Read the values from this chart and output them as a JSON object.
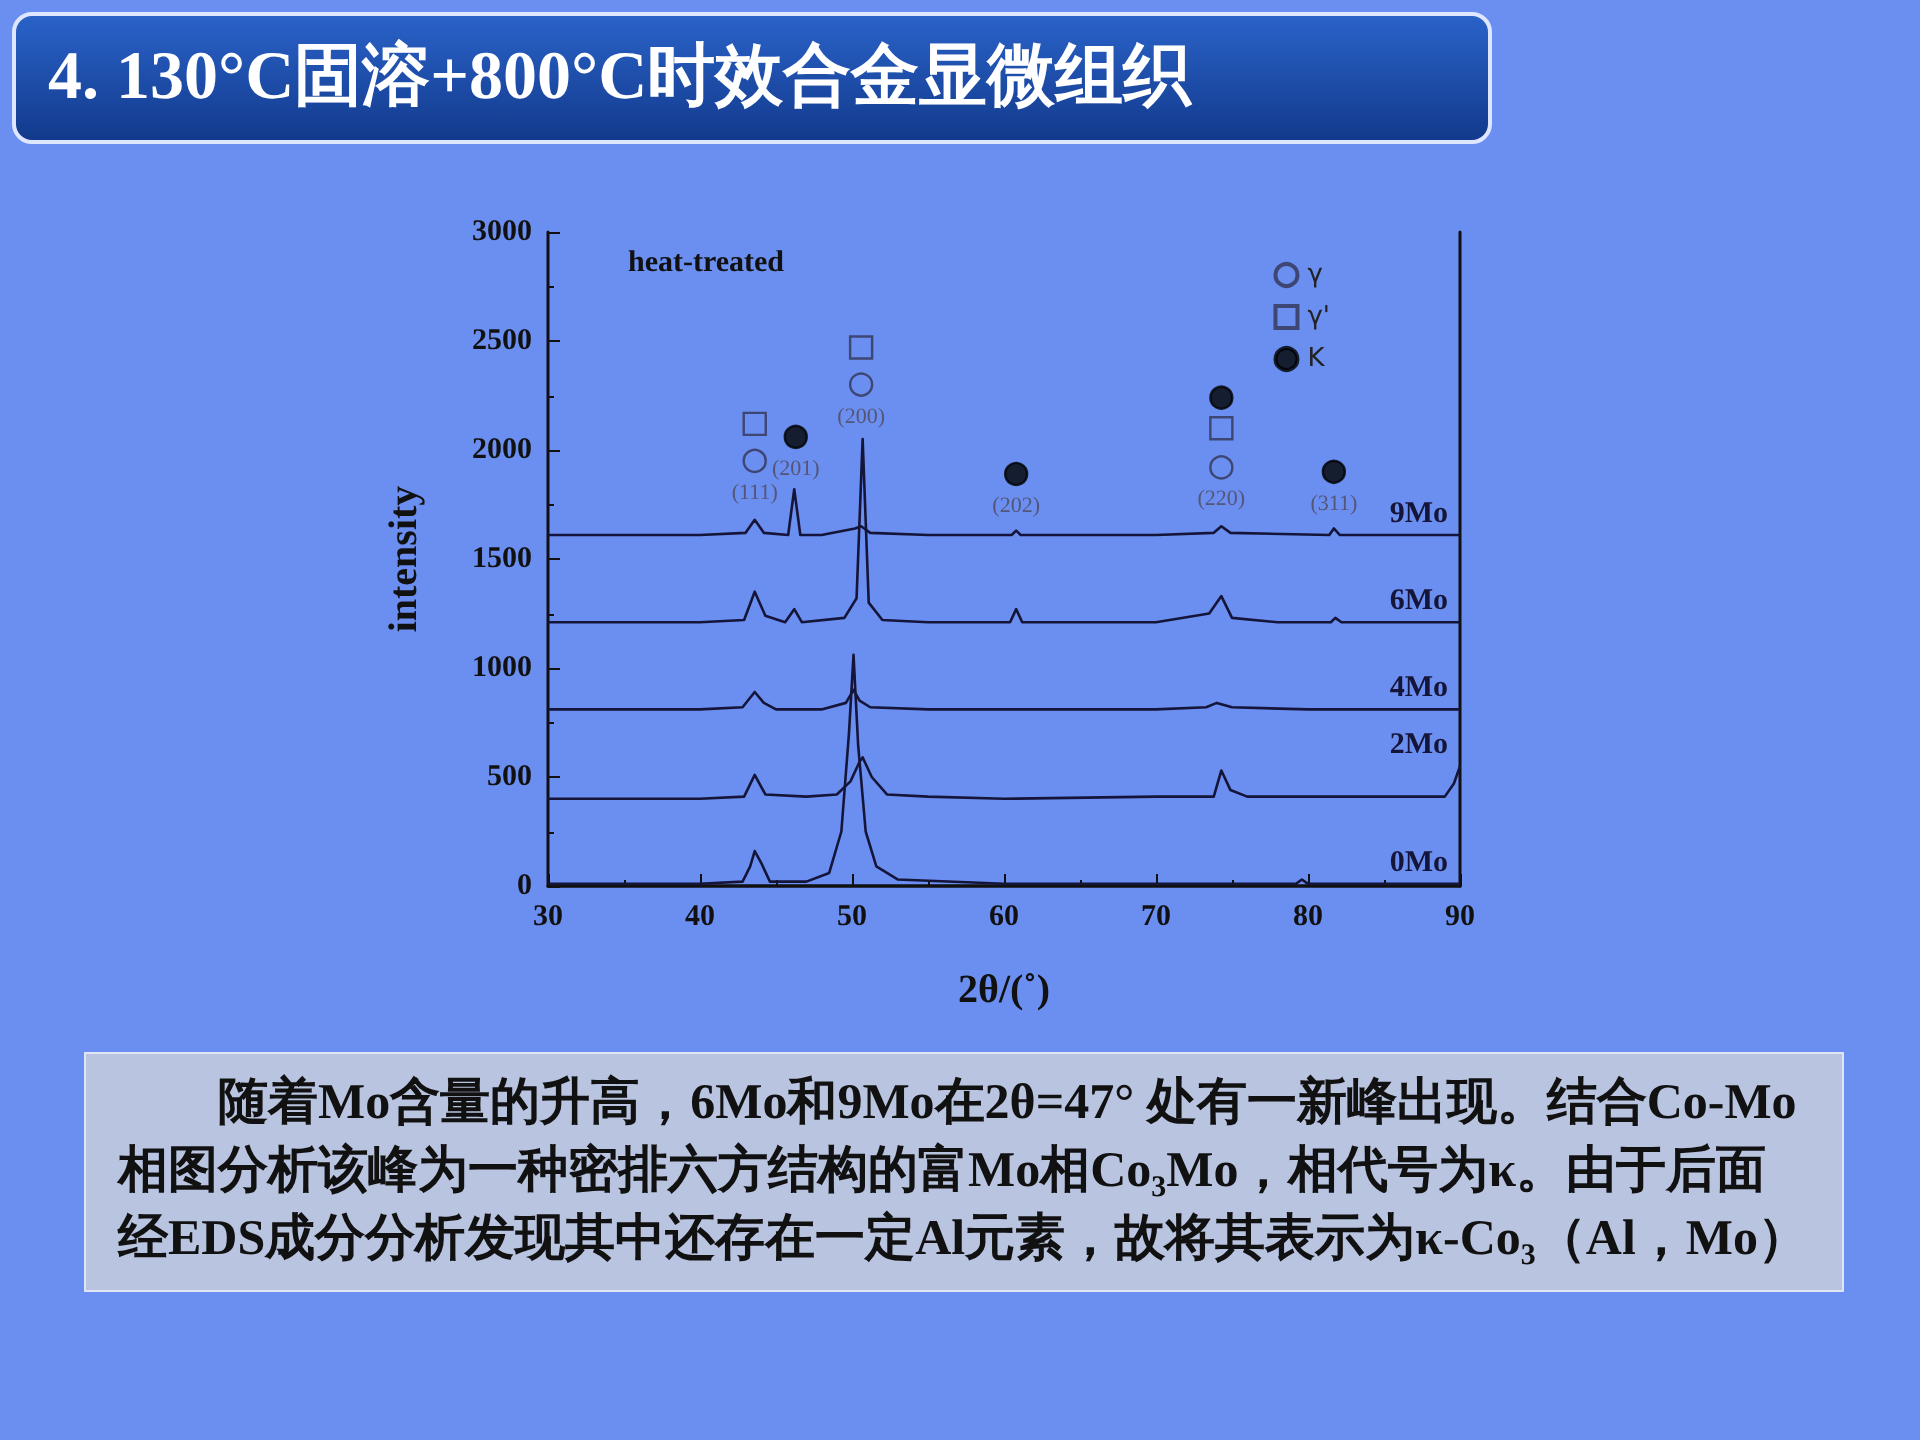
{
  "chart_data": {
    "type": "line",
    "title": "4. 130°C固溶+800°C时效合金显微组织",
    "xlabel": "2θ/(˚)",
    "ylabel": "intensity",
    "xlim": [
      30,
      90
    ],
    "xticks": [
      30,
      40,
      50,
      60,
      70,
      80,
      90
    ],
    "ylim": [
      0,
      3000
    ],
    "yticks": [
      0,
      500,
      1000,
      1500,
      2000,
      2500,
      3000
    ],
    "grid": false,
    "legend": "top right",
    "marker": "none",
    "series": [
      {
        "name": "0Mo",
        "color": "#15153a",
        "x": [
          30,
          35,
          40,
          42.8,
          43.3,
          43.6,
          44,
          44.6,
          47,
          48.5,
          49.3,
          49.8,
          50.1,
          50.4,
          50.9,
          51.6,
          53,
          60,
          70,
          79.2,
          79.6,
          80,
          90
        ],
        "values": [
          10,
          10,
          10,
          20,
          90,
          160,
          110,
          20,
          20,
          60,
          250,
          700,
          1060,
          650,
          250,
          90,
          30,
          10,
          10,
          10,
          30,
          10,
          10
        ]
      },
      {
        "name": "2Mo",
        "color": "#15153a",
        "x": [
          30,
          40,
          42.9,
          43.6,
          44.3,
          47,
          49,
          49.9,
          50.5,
          50.7,
          51.3,
          52.3,
          55,
          60,
          70,
          73.8,
          74.3,
          74.9,
          76,
          85,
          89,
          89.6,
          90
        ],
        "values": [
          400,
          400,
          410,
          510,
          420,
          410,
          420,
          480,
          570,
          590,
          500,
          420,
          410,
          400,
          410,
          410,
          530,
          440,
          410,
          410,
          410,
          470,
          550
        ]
      },
      {
        "name": "4Mo",
        "color": "#15153a",
        "x": [
          30,
          40,
          42.8,
          43.6,
          44.2,
          45,
          48,
          49.6,
          50.1,
          50.5,
          51.2,
          55,
          70,
          73.3,
          74,
          75,
          80,
          90
        ],
        "values": [
          810,
          810,
          820,
          890,
          840,
          810,
          810,
          840,
          900,
          850,
          820,
          810,
          810,
          820,
          840,
          820,
          810,
          810
        ]
      },
      {
        "name": "6Mo",
        "color": "#15153a",
        "x": [
          30,
          40,
          42.9,
          43.6,
          44.3,
          45.6,
          46.2,
          46.7,
          49.5,
          50.3,
          50.7,
          51.1,
          52,
          55,
          60.4,
          60.8,
          61.2,
          70,
          73.5,
          74.3,
          75,
          78,
          81.5,
          81.8,
          82.2,
          90
        ],
        "values": [
          1210,
          1210,
          1220,
          1350,
          1240,
          1210,
          1270,
          1210,
          1230,
          1320,
          2050,
          1300,
          1220,
          1210,
          1210,
          1270,
          1210,
          1210,
          1250,
          1330,
          1230,
          1210,
          1210,
          1230,
          1210,
          1210
        ]
      },
      {
        "name": "9Mo",
        "color": "#15153a",
        "x": [
          30,
          40,
          43,
          43.6,
          44.2,
          45.8,
          46.2,
          46.6,
          48,
          50.2,
          50.6,
          51.2,
          55,
          60.5,
          60.8,
          61.1,
          70,
          73.8,
          74.3,
          74.9,
          81.4,
          81.7,
          82.1,
          90
        ],
        "values": [
          1610,
          1610,
          1620,
          1680,
          1620,
          1610,
          1820,
          1610,
          1610,
          1640,
          1650,
          1620,
          1610,
          1610,
          1630,
          1610,
          1610,
          1620,
          1650,
          1620,
          1610,
          1640,
          1610,
          1610
        ]
      },
      {
        "name": "γ",
        "type": "scatter",
        "marker": "circle",
        "color": "#333355",
        "x": [
          43.6,
          50.6,
          74.3
        ],
        "values": [
          1950,
          2300,
          1920
        ]
      },
      {
        "name": "γ'",
        "type": "scatter",
        "marker": "square",
        "color": "#333355",
        "x": [
          43.6,
          50.6,
          74.3
        ],
        "values": [
          2120,
          2470,
          2100
        ]
      },
      {
        "name": "K",
        "type": "scatter",
        "marker": "circle",
        "color": "#000000",
        "x": [
          46.3,
          60.8,
          74.3,
          81.7
        ],
        "values": [
          2060,
          1890,
          2240,
          1900
        ]
      }
    ],
    "annotations": [
      "heat-treated",
      "(111)",
      "(201)",
      "(200)",
      "(202)",
      "(220)",
      "(311)",
      "随着Mo含量的升高，6Mo和9Mo在2θ=47° 处有一新峰出现。结合Co-Mo相图分析该峰为一种密排六方结构的富Mo相Co₃Mo，相代号为κ。由于后面经EDS成分分析发现其中还存在一定Al元素，故将其表示为κ-Co₃（Al，Mo）"
    ]
  }
}
